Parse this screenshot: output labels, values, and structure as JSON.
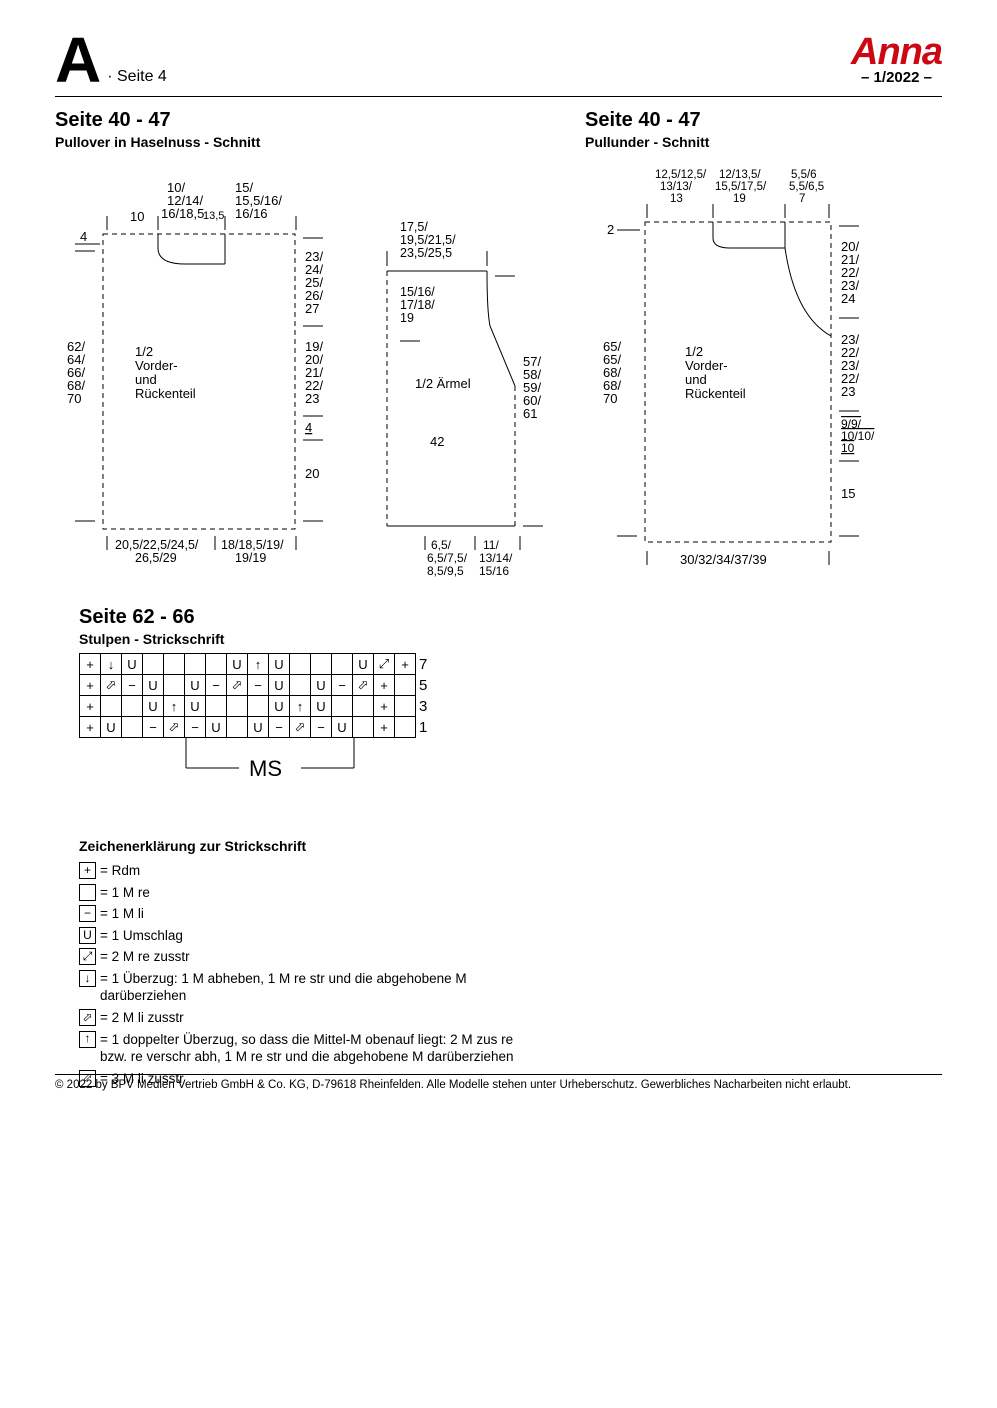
{
  "header": {
    "letter": "A",
    "seite4": "· Seite 4",
    "brand": "Anna",
    "issue": "– 1/2022 –"
  },
  "pullover": {
    "title": "Seite 40 - 47",
    "subtitle": "Pullover in Haselnuss - Schnitt",
    "body": {
      "top_left_4": "4",
      "top_10": "10",
      "top_mid": "10/\n12/14/\n16/18,5",
      "top_mid2": "13,5",
      "top_right_col": "15/\n15,5/16/\n16/16",
      "left_col": "62/\n64/\n66/\n68/\n70",
      "center_label": "1/2\nVorder-\nund\nRückenteil",
      "right_upper": "23/\n24/\n25/\n26/\n27",
      "right_mid": "19/\n20/\n21/\n22/\n23",
      "right_4u": "4",
      "right_20": "20",
      "bottom_left": "20,5/22,5/24,5/\n26,5/29",
      "bottom_right": "18/18,5/19/\n19/19"
    },
    "sleeve": {
      "top": "17,5/\n19,5/21,5/\n23,5/25,5",
      "upper_right": "15/16/\n17/18/\n19",
      "label": "1/2 Ärmel",
      "right_col": "57/\n58/\n59/\n60/\n61",
      "mid_42": "42",
      "bot_left": "6,5/\n6,5/7,5/\n8,5/9,5",
      "bot_right": "11/\n13/14/\n15/16"
    }
  },
  "pullunder": {
    "title": "Seite 40 - 47",
    "subtitle": "Pullunder - Schnitt",
    "top_c1": "12,5/12,5/\n13/13/\n13",
    "top_c2": "12/13,5/\n15,5/17,5/\n19",
    "top_c3": "5,5/6\n5,5/6,5\n7",
    "left_2": "2",
    "right_upper": "20/\n21/\n22/\n23/\n24",
    "left_col": "65/\n65/\n68/\n68/\n70",
    "center_label": "1/2\nVorder-\nund\nRückenteil",
    "right_mid": "23/\n22/\n23/\n22/\n23",
    "right_9": "9/9/\n10/10/\n10",
    "right_15": "15",
    "bottom": "30/32/34/37/39"
  },
  "stulpen": {
    "title": "Seite 62 - 66",
    "subtitle": "Stulpen - Strickschrift",
    "rows": [
      {
        "n": "7",
        "cells": [
          "+",
          "↓",
          "U",
          "",
          "",
          "",
          "",
          "U",
          "↑",
          "U",
          "",
          "",
          "",
          "U",
          "⤢",
          "+"
        ]
      },
      {
        "n": "5",
        "cells": [
          "+",
          "⬀",
          "−",
          "U",
          "",
          "U",
          "−",
          "⬀",
          "−",
          "U",
          "",
          "U",
          "−",
          "⬀",
          "+",
          ""
        ]
      },
      {
        "n": "3",
        "cells": [
          "+",
          "",
          "",
          "U",
          "↑",
          "U",
          "",
          "",
          "",
          "U",
          "↑",
          "U",
          "",
          "",
          "+",
          ""
        ]
      },
      {
        "n": "1",
        "cells": [
          "+",
          "U",
          "",
          "−",
          "⬀",
          "−",
          "U",
          "",
          "U",
          "−",
          "⬀",
          "−",
          "U",
          "",
          "+",
          ""
        ]
      }
    ],
    "ms": "MS"
  },
  "legend": {
    "title": "Zeichenerklärung zur Strickschrift",
    "items": [
      {
        "sym": "+",
        "text": "= Rdm"
      },
      {
        "sym": "",
        "text": "= 1 M re"
      },
      {
        "sym": "−",
        "text": "= 1 M li"
      },
      {
        "sym": "U",
        "text": "= 1 Umschlag"
      },
      {
        "sym": "⤢",
        "text": "= 2 M re zusstr"
      },
      {
        "sym": "↓",
        "text": "= 1 Überzug: 1 M abheben, 1 M re str und die abgehobene M darüberziehen"
      },
      {
        "sym": "⬀",
        "text": "= 2 M li zusstr"
      },
      {
        "sym": "↑",
        "text": "= 1 doppelter Überzug, so dass die Mittel-M obenauf liegt: 2 M zus re bzw. re verschr abh, 1 M re str und die abgehobene M darüberziehen"
      },
      {
        "sym": "⬀",
        "text": "= 3 M li zusstr"
      }
    ]
  },
  "footer": "© 2022 by BPV Medien Vertrieb GmbH & Co. KG, D-79618 Rheinfelden. Alle Modelle stehen unter Urheberschutz. Gewerbliches Nacharbeiten nicht erlaubt.",
  "style": {
    "accent": "#cc0815",
    "stroke": "#000000",
    "dash": "5,4",
    "font_small": 12,
    "font_med": 13
  }
}
